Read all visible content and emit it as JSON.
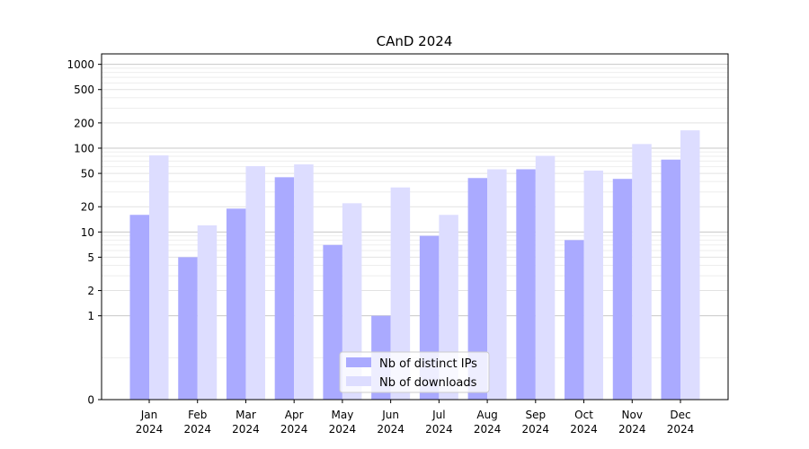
{
  "chart_data": {
    "type": "bar",
    "title": "CAnD 2024",
    "xlabel": "",
    "ylabel": "",
    "categories": [
      [
        "Jan",
        "2024"
      ],
      [
        "Feb",
        "2024"
      ],
      [
        "Mar",
        "2024"
      ],
      [
        "Apr",
        "2024"
      ],
      [
        "May",
        "2024"
      ],
      [
        "Jun",
        "2024"
      ],
      [
        "Jul",
        "2024"
      ],
      [
        "Aug",
        "2024"
      ],
      [
        "Sep",
        "2024"
      ],
      [
        "Oct",
        "2024"
      ],
      [
        "Nov",
        "2024"
      ],
      [
        "Dec",
        "2024"
      ]
    ],
    "y_scale": "symlog",
    "y_ticks": [
      0,
      1,
      2,
      5,
      10,
      20,
      50,
      100,
      200,
      500,
      1000
    ],
    "y_tick_labels": [
      "0",
      "1",
      "2",
      "5",
      "10",
      "20",
      "50",
      "100",
      "200",
      "500",
      "1000"
    ],
    "ylim": [
      0,
      1300
    ],
    "grid": "horizontal",
    "legend_position": "bottom-center",
    "series": [
      {
        "name": "Nb of distinct IPs",
        "color": "#aaaaff",
        "values": [
          16,
          5,
          19,
          45,
          7,
          1,
          9,
          44,
          56,
          8,
          43,
          73
        ]
      },
      {
        "name": "Nb of downloads",
        "color": "#ddddff",
        "values": [
          82,
          12,
          61,
          64,
          22,
          34,
          16,
          56,
          81,
          54,
          112,
          163
        ]
      }
    ]
  }
}
